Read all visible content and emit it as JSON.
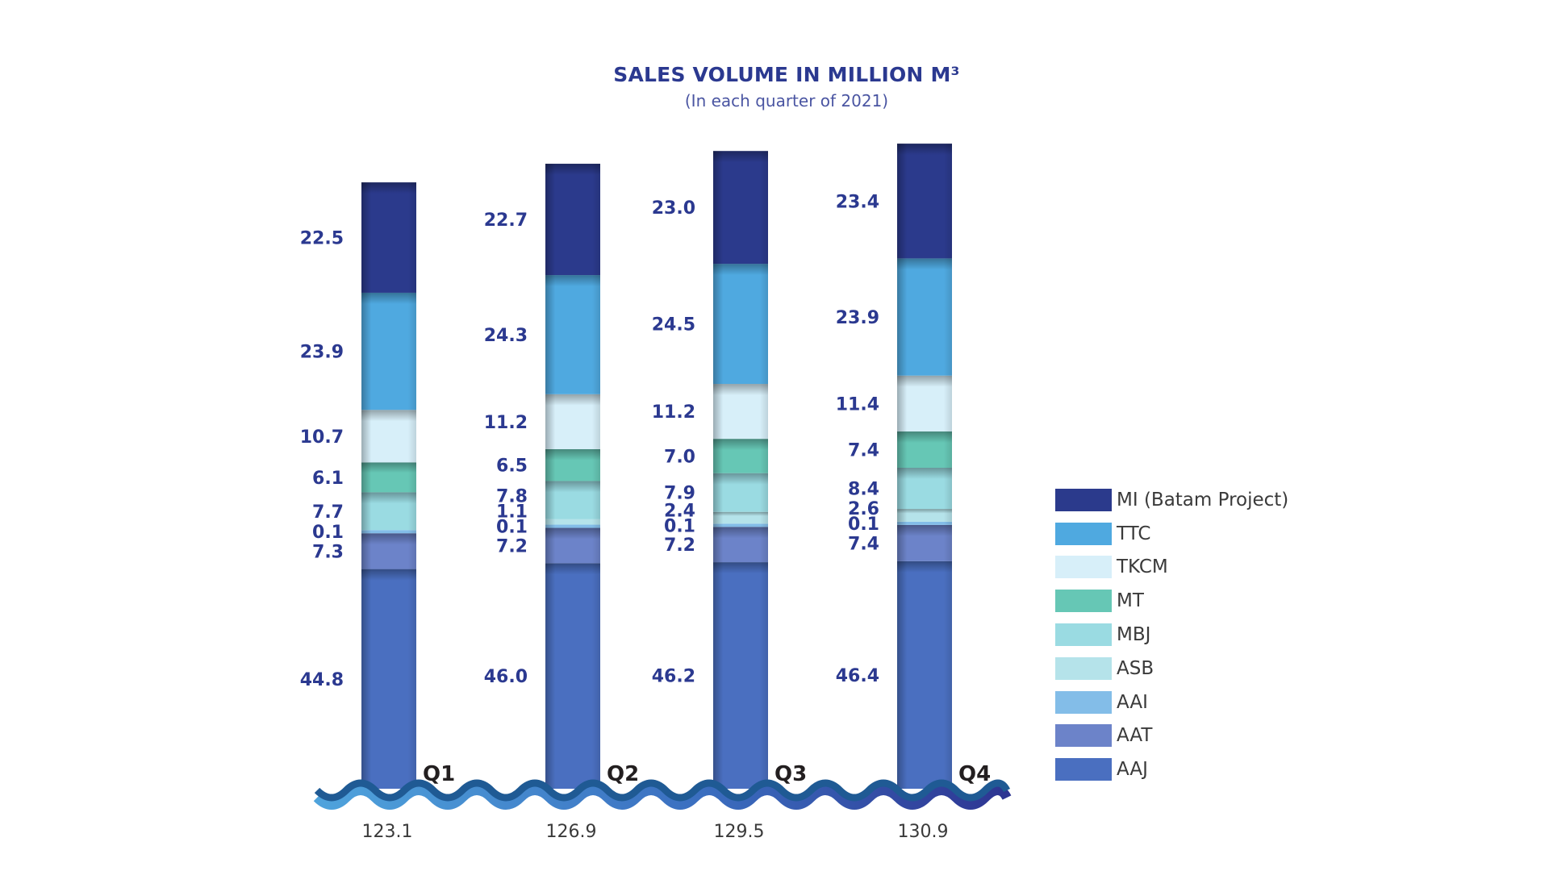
{
  "chart_data": {
    "type": "bar",
    "stacked": true,
    "title": "SALES VOLUME IN MILLION M³",
    "subtitle": "(In each quarter of 2021)",
    "xlabel": "",
    "ylabel": "",
    "grid": false,
    "legend_position": "right",
    "categories": [
      "Q1",
      "Q2",
      "Q3",
      "Q4"
    ],
    "totals": [
      "123.1",
      "126.9",
      "129.5",
      "130.9"
    ],
    "series": [
      {
        "name": "AAJ",
        "color": "#4a6fc0",
        "values": [
          44.8,
          46.0,
          46.2,
          46.4
        ],
        "labels": [
          "44.8",
          "46.0",
          "46.2",
          "46.4"
        ]
      },
      {
        "name": "AAT",
        "color": "#6c83c9",
        "values": [
          7.3,
          7.2,
          7.2,
          7.4
        ],
        "labels": [
          "7.3",
          "7.2",
          "7.2",
          "7.4"
        ]
      },
      {
        "name": "AAI",
        "color": "#83bde8",
        "values": [
          0.1,
          0.1,
          0.1,
          0.1
        ],
        "labels": [
          "0.1",
          "0.1",
          "0.1",
          "0.1"
        ]
      },
      {
        "name": "ASB",
        "color": "#b5e3ea",
        "values": [
          0,
          1.1,
          2.4,
          2.6
        ],
        "labels": [
          "",
          "1.1",
          "2.4",
          "2.6"
        ]
      },
      {
        "name": "MBJ",
        "color": "#9adbe2",
        "values": [
          7.7,
          7.8,
          7.9,
          8.4
        ],
        "labels": [
          "7.7",
          "7.8",
          "7.9",
          "8.4"
        ]
      },
      {
        "name": "MT",
        "color": "#66c7b5",
        "values": [
          6.1,
          6.5,
          7.0,
          7.4
        ],
        "labels": [
          "6.1",
          "6.5",
          "7.0",
          "7.4"
        ]
      },
      {
        "name": "TKCM",
        "color": "#d7eff9",
        "values": [
          10.7,
          11.2,
          11.2,
          11.4
        ],
        "labels": [
          "10.7",
          "11.2",
          "11.2",
          "11.4"
        ]
      },
      {
        "name": "TTC",
        "color": "#4fa9e0",
        "values": [
          23.9,
          24.3,
          24.5,
          23.9
        ],
        "labels": [
          "23.9",
          "24.3",
          "24.5",
          "23.9"
        ]
      },
      {
        "name": "MI (Batam Project)",
        "color": "#2b3a8c",
        "values": [
          22.5,
          22.7,
          23.0,
          23.4
        ],
        "labels": [
          "22.5",
          "22.7",
          "23.0",
          "23.4"
        ]
      }
    ],
    "legend_order": [
      "MI (Batam Project)",
      "TTC",
      "TKCM",
      "MT",
      "MBJ",
      "ASB",
      "AAI",
      "AAT",
      "AAJ"
    ]
  }
}
